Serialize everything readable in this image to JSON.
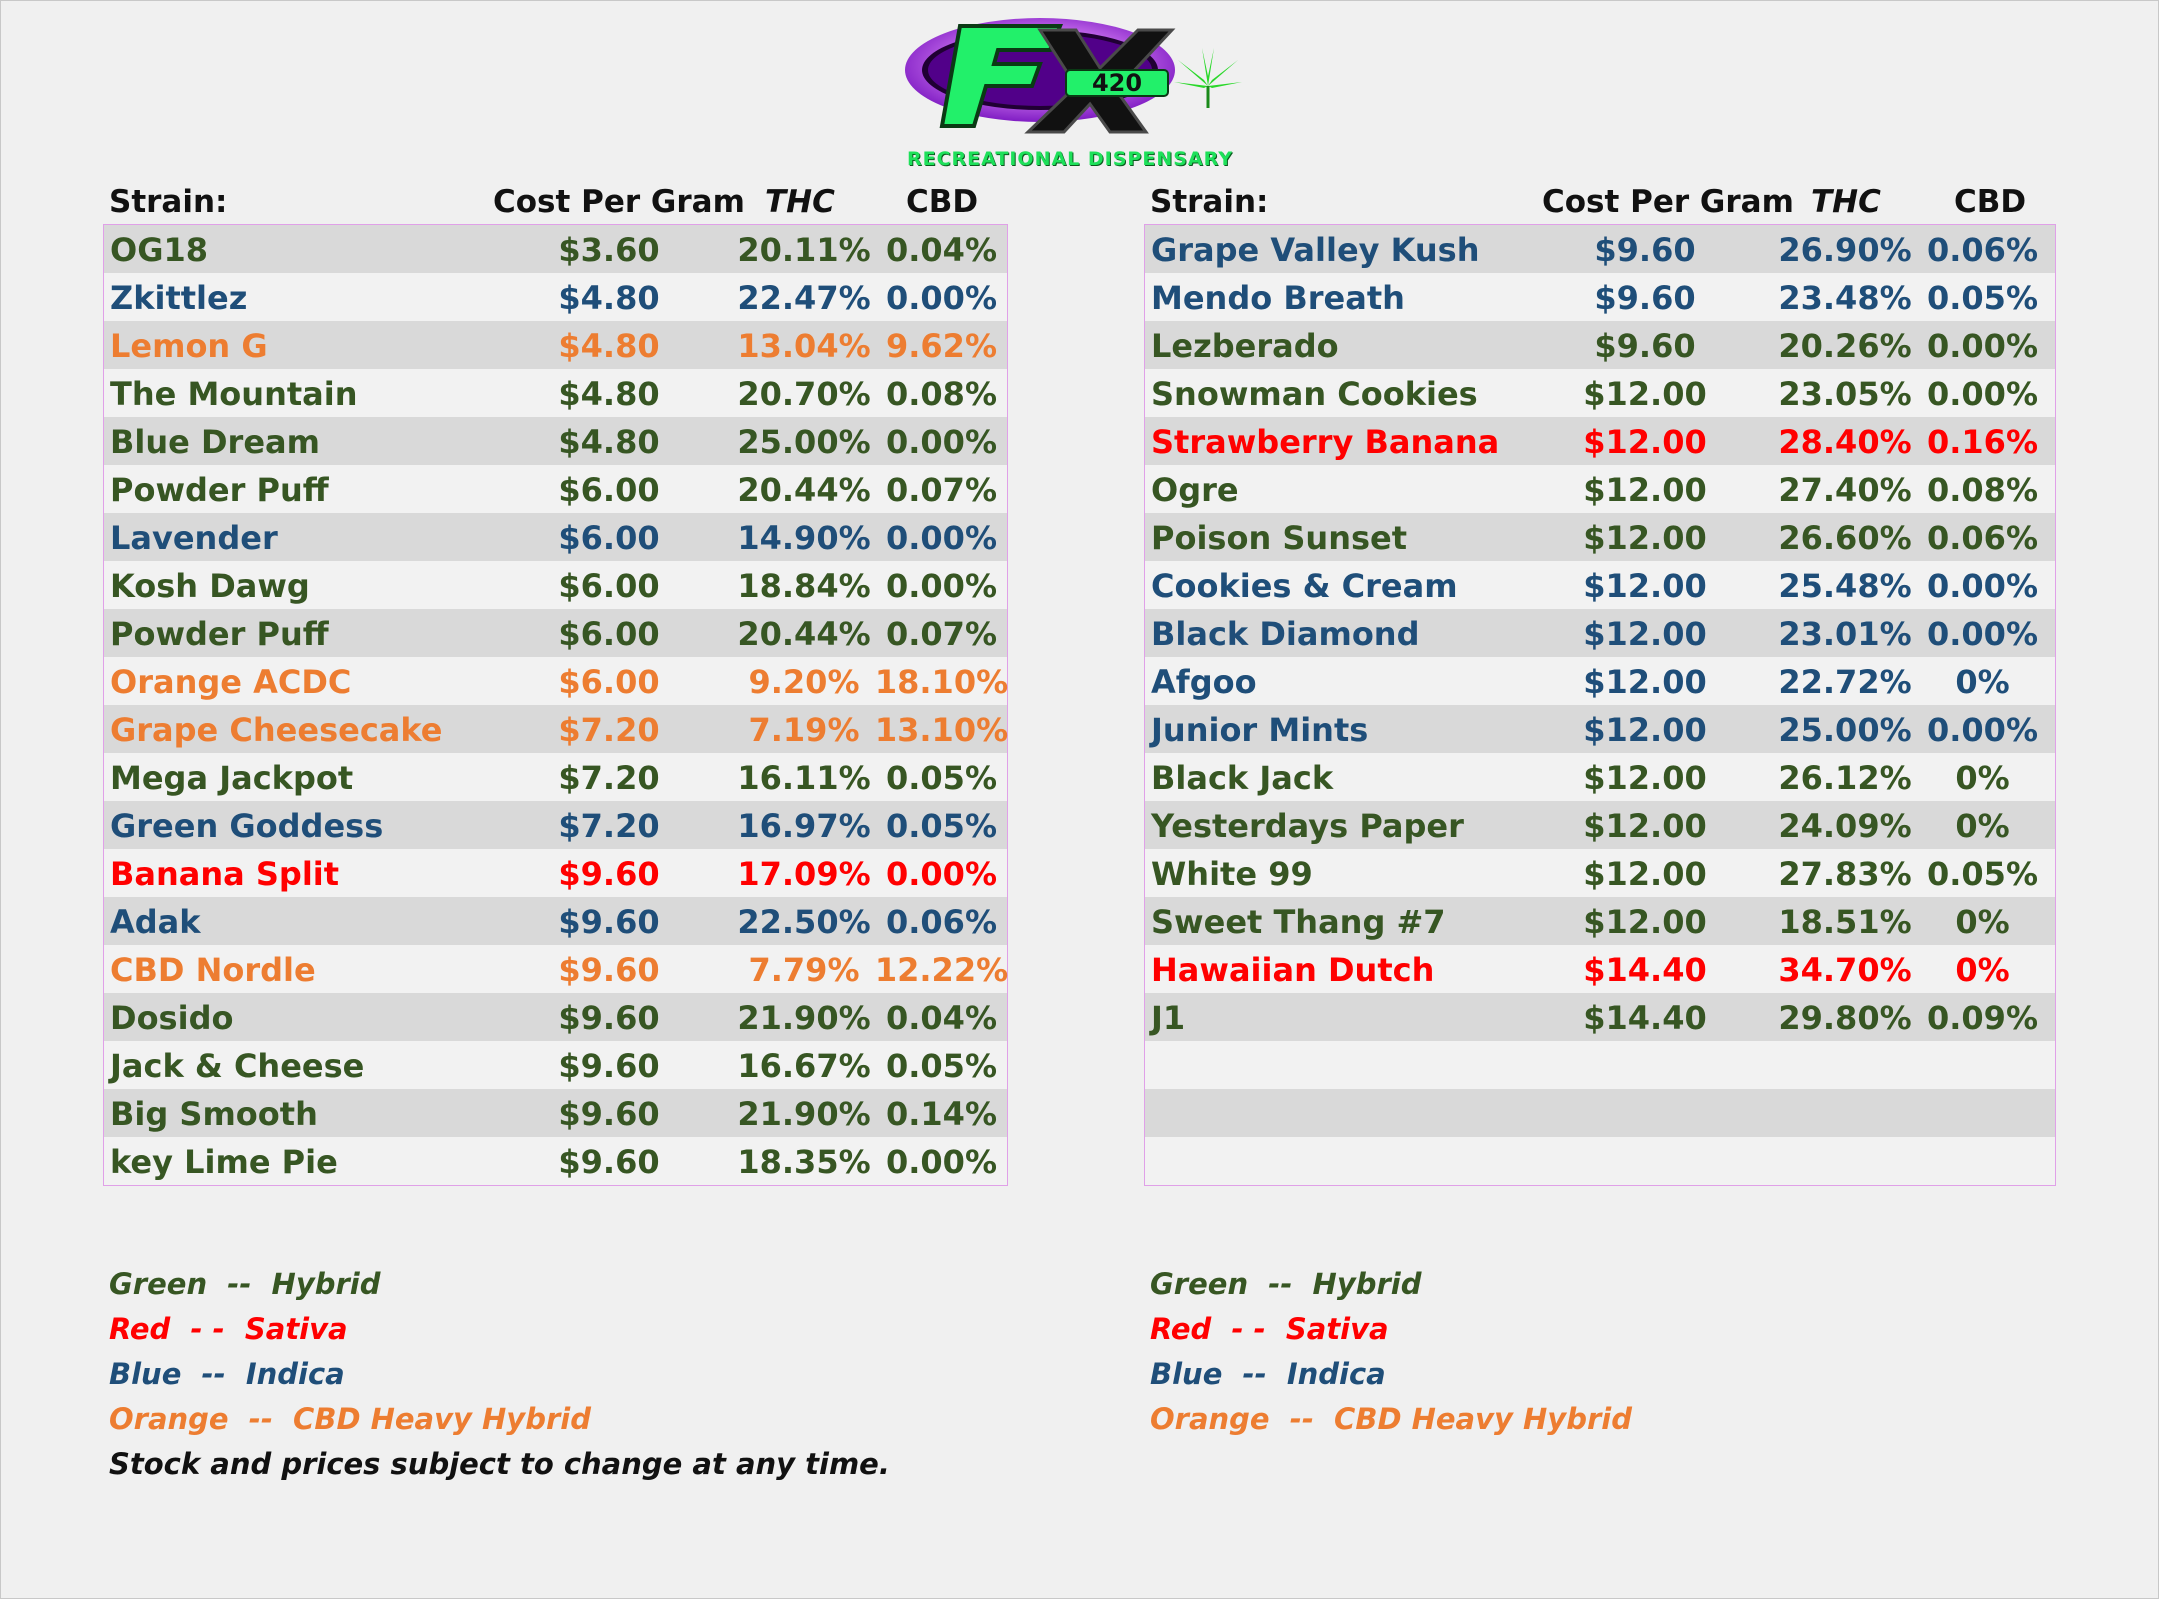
{
  "brand": {
    "logo_text": "FX420",
    "subtitle": "RECREATIONAL DISPENSARY"
  },
  "headers": {
    "strain": "Strain:",
    "cost": "Cost Per Gram",
    "thc": "THC",
    "cbd": "CBD"
  },
  "colors": {
    "hybrid": "#375623",
    "indica": "#1f4e79",
    "sativa": "#ff0000",
    "cbd_heavy": "#ed7d31"
  },
  "left_table": [
    {
      "name": "OG18",
      "cost": "$3.60",
      "thc": "20.11%",
      "cbd": "0.04%",
      "type": "hybrid"
    },
    {
      "name": "Zkittlez",
      "cost": "$4.80",
      "thc": "22.47%",
      "cbd": "0.00%",
      "type": "indica"
    },
    {
      "name": "Lemon G",
      "cost": "$4.80",
      "thc": "13.04%",
      "cbd": "9.62%",
      "type": "cbd"
    },
    {
      "name": "The Mountain",
      "cost": "$4.80",
      "thc": "20.70%",
      "cbd": "0.08%",
      "type": "hybrid"
    },
    {
      "name": "Blue Dream",
      "cost": "$4.80",
      "thc": "25.00%",
      "cbd": "0.00%",
      "type": "hybrid"
    },
    {
      "name": "Powder Puff",
      "cost": "$6.00",
      "thc": "20.44%",
      "cbd": "0.07%",
      "type": "hybrid"
    },
    {
      "name": "Lavender",
      "cost": "$6.00",
      "thc": "14.90%",
      "cbd": "0.00%",
      "type": "indica"
    },
    {
      "name": "Kosh Dawg",
      "cost": "$6.00",
      "thc": "18.84%",
      "cbd": "0.00%",
      "type": "hybrid"
    },
    {
      "name": "Powder Puff",
      "cost": "$6.00",
      "thc": "20.44%",
      "cbd": "0.07%",
      "type": "hybrid"
    },
    {
      "name": "Orange ACDC",
      "cost": "$6.00",
      "thc": "9.20%",
      "cbd": "18.10%",
      "type": "cbd"
    },
    {
      "name": "Grape Cheesecake",
      "cost": "$7.20",
      "thc": "7.19%",
      "cbd": "13.10%",
      "type": "cbd"
    },
    {
      "name": "Mega Jackpot",
      "cost": "$7.20",
      "thc": "16.11%",
      "cbd": "0.05%",
      "type": "hybrid"
    },
    {
      "name": "Green Goddess",
      "cost": "$7.20",
      "thc": "16.97%",
      "cbd": "0.05%",
      "type": "indica"
    },
    {
      "name": "Banana Split",
      "cost": "$9.60",
      "thc": "17.09%",
      "cbd": "0.00%",
      "type": "sativa"
    },
    {
      "name": "Adak",
      "cost": "$9.60",
      "thc": "22.50%",
      "cbd": "0.06%",
      "type": "indica"
    },
    {
      "name": "CBD Nordle",
      "cost": "$9.60",
      "thc": "7.79%",
      "cbd": "12.22%",
      "type": "cbd"
    },
    {
      "name": "Dosido",
      "cost": "$9.60",
      "thc": "21.90%",
      "cbd": "0.04%",
      "type": "hybrid"
    },
    {
      "name": "Jack & Cheese",
      "cost": "$9.60",
      "thc": "16.67%",
      "cbd": "0.05%",
      "type": "hybrid"
    },
    {
      "name": "Big Smooth",
      "cost": "$9.60",
      "thc": "21.90%",
      "cbd": "0.14%",
      "type": "hybrid"
    },
    {
      "name": "key Lime Pie",
      "cost": "$9.60",
      "thc": "18.35%",
      "cbd": "0.00%",
      "type": "hybrid"
    }
  ],
  "right_table": [
    {
      "name": "Grape Valley Kush",
      "cost": "$9.60",
      "thc": "26.90%",
      "cbd": "0.06%",
      "type": "indica"
    },
    {
      "name": "Mendo Breath",
      "cost": "$9.60",
      "thc": "23.48%",
      "cbd": "0.05%",
      "type": "indica"
    },
    {
      "name": "Lezberado",
      "cost": "$9.60",
      "thc": "20.26%",
      "cbd": "0.00%",
      "type": "hybrid"
    },
    {
      "name": "Snowman Cookies",
      "cost": "$12.00",
      "thc": "23.05%",
      "cbd": "0.00%",
      "type": "hybrid"
    },
    {
      "name": "Strawberry Banana",
      "cost": "$12.00",
      "thc": "28.40%",
      "cbd": "0.16%",
      "type": "sativa"
    },
    {
      "name": "Ogre",
      "cost": "$12.00",
      "thc": "27.40%",
      "cbd": "0.08%",
      "type": "hybrid"
    },
    {
      "name": "Poison Sunset",
      "cost": "$12.00",
      "thc": "26.60%",
      "cbd": "0.06%",
      "type": "hybrid"
    },
    {
      "name": "Cookies & Cream",
      "cost": "$12.00",
      "thc": "25.48%",
      "cbd": "0.00%",
      "type": "indica"
    },
    {
      "name": "Black Diamond",
      "cost": "$12.00",
      "thc": "23.01%",
      "cbd": "0.00%",
      "type": "indica"
    },
    {
      "name": "Afgoo",
      "cost": "$12.00",
      "thc": "22.72%",
      "cbd": "0%",
      "type": "indica"
    },
    {
      "name": "Junior Mints",
      "cost": "$12.00",
      "thc": "25.00%",
      "cbd": "0.00%",
      "type": "indica"
    },
    {
      "name": "Black Jack",
      "cost": "$12.00",
      "thc": "26.12%",
      "cbd": "0%",
      "type": "hybrid"
    },
    {
      "name": "Yesterdays Paper",
      "cost": "$12.00",
      "thc": "24.09%",
      "cbd": "0%",
      "type": "hybrid"
    },
    {
      "name": "White 99",
      "cost": "$12.00",
      "thc": "27.83%",
      "cbd": "0.05%",
      "type": "hybrid"
    },
    {
      "name": "Sweet Thang #7",
      "cost": "$12.00",
      "thc": "18.51%",
      "cbd": "0%",
      "type": "hybrid"
    },
    {
      "name": "Hawaiian Dutch",
      "cost": "$14.40",
      "thc": "34.70%",
      "cbd": "0%",
      "type": "sativa"
    },
    {
      "name": "J1",
      "cost": "$14.40",
      "thc": "29.80%",
      "cbd": "0.09%",
      "type": "hybrid"
    },
    {
      "name": "",
      "cost": "",
      "thc": "",
      "cbd": "",
      "type": "hybrid"
    },
    {
      "name": "",
      "cost": "",
      "thc": "",
      "cbd": "",
      "type": "hybrid"
    },
    {
      "name": "",
      "cost": "",
      "thc": "",
      "cbd": "",
      "type": "hybrid"
    }
  ],
  "legend": {
    "hybrid": "Green  --  Hybrid",
    "sativa": "Red  - -  Sativa",
    "indica": "Blue  --  Indica",
    "cbd": "Orange  --  CBD Heavy Hybrid",
    "note": "Stock and prices subject to change at any time."
  }
}
